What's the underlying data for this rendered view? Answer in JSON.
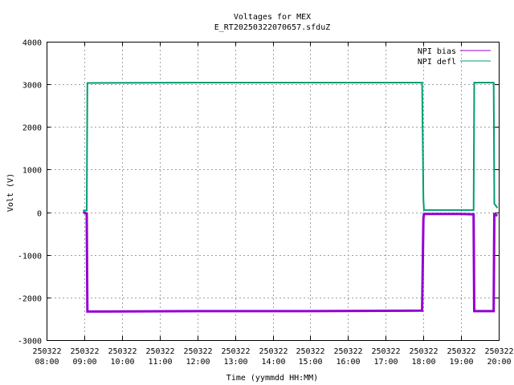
{
  "chart_data": {
    "type": "line",
    "title": "Voltages for MEX",
    "subtitle": "E_RT20250322070657.sfduZ",
    "xlabel": "Time (yymmdd HH:MM)",
    "ylabel": "Volt (V)",
    "xlim": [
      "250322 08:00",
      "250322 20:00"
    ],
    "ylim": [
      -3000,
      4000
    ],
    "yticks": [
      -3000,
      -2000,
      -1000,
      0,
      1000,
      2000,
      3000,
      4000
    ],
    "xticks": [
      {
        "date": "250322",
        "time": "08:00"
      },
      {
        "date": "250322",
        "time": "09:00"
      },
      {
        "date": "250322",
        "time": "10:00"
      },
      {
        "date": "250322",
        "time": "11:00"
      },
      {
        "date": "250322",
        "time": "12:00"
      },
      {
        "date": "250322",
        "time": "13:00"
      },
      {
        "date": "250322",
        "time": "14:00"
      },
      {
        "date": "250322",
        "time": "15:00"
      },
      {
        "date": "250322",
        "time": "16:00"
      },
      {
        "date": "250322",
        "time": "17:00"
      },
      {
        "date": "250322",
        "time": "18:00"
      },
      {
        "date": "250322",
        "time": "19:00"
      },
      {
        "date": "250322",
        "time": "20:00"
      }
    ],
    "grid": true,
    "legend_position": "top-right",
    "series": [
      {
        "name": "NPI bias",
        "color": "#9400d3",
        "points": [
          [
            "250322 08:58",
            0
          ],
          [
            "250322 09:04",
            -30
          ],
          [
            "250322 09:05",
            -2330
          ],
          [
            "250322 12:00",
            -2320
          ],
          [
            "250322 15:00",
            -2320
          ],
          [
            "250322 17:58",
            -2310
          ],
          [
            "250322 18:00",
            -150
          ],
          [
            "250322 18:01",
            -40
          ],
          [
            "250322 19:00",
            -40
          ],
          [
            "250322 19:20",
            -50
          ],
          [
            "250322 19:21",
            -2320
          ],
          [
            "250322 19:52",
            -2320
          ],
          [
            "250322 19:53",
            -50
          ],
          [
            "250322 19:58",
            -80
          ]
        ]
      },
      {
        "name": "NPI defl",
        "color": "#009e73",
        "points": [
          [
            "250322 08:58",
            40
          ],
          [
            "250322 09:04",
            40
          ],
          [
            "250322 09:05",
            3030
          ],
          [
            "250322 12:00",
            3040
          ],
          [
            "250322 15:00",
            3040
          ],
          [
            "250322 17:58",
            3040
          ],
          [
            "250322 18:00",
            300
          ],
          [
            "250322 18:01",
            50
          ],
          [
            "250322 19:00",
            50
          ],
          [
            "250322 19:20",
            50
          ],
          [
            "250322 19:21",
            3040
          ],
          [
            "250322 19:52",
            3040
          ],
          [
            "250322 19:53",
            200
          ],
          [
            "250322 19:58",
            100
          ]
        ]
      }
    ]
  }
}
